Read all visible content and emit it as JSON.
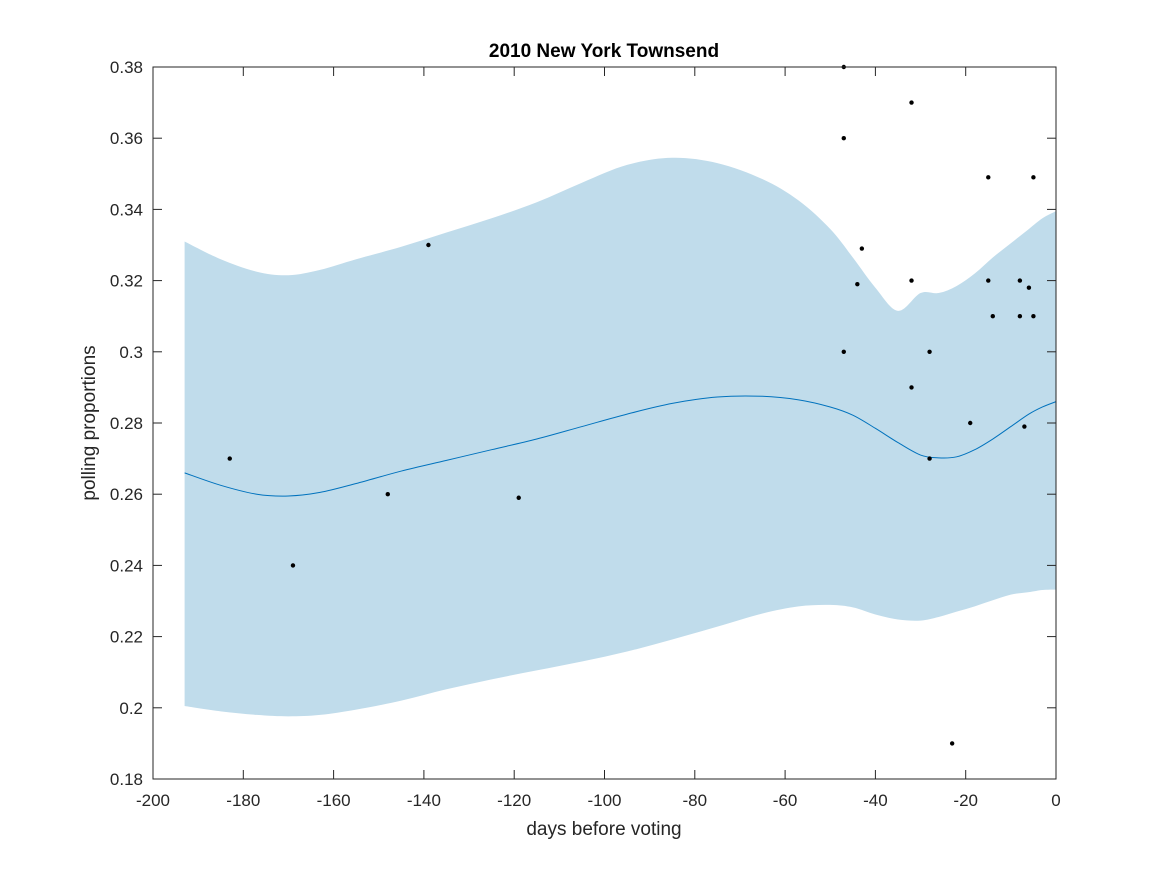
{
  "chart_data": {
    "type": "scatter",
    "title": "2010 New York Townsend",
    "xlabel": "days before voting",
    "ylabel": "polling proportions",
    "xlim": [
      -200,
      0
    ],
    "ylim": [
      0.18,
      0.38
    ],
    "xticks": [
      "-200",
      "-180",
      "-160",
      "-140",
      "-120",
      "-100",
      "-80",
      "-60",
      "-40",
      "-20",
      "0"
    ],
    "yticks": [
      "0.18",
      "0.2",
      "0.22",
      "0.24",
      "0.26",
      "0.28",
      "0.3",
      "0.32",
      "0.34",
      "0.36",
      "0.38"
    ],
    "grid": false,
    "colors": {
      "band": "#c0dceb",
      "line": "#0072bd",
      "points": "#000000",
      "axes": "#262626"
    },
    "points": [
      {
        "x": -183,
        "y": 0.27
      },
      {
        "x": -169,
        "y": 0.24
      },
      {
        "x": -148,
        "y": 0.26
      },
      {
        "x": -139,
        "y": 0.33
      },
      {
        "x": -119,
        "y": 0.259
      },
      {
        "x": -47,
        "y": 0.38
      },
      {
        "x": -47,
        "y": 0.36
      },
      {
        "x": -47,
        "y": 0.3
      },
      {
        "x": -44,
        "y": 0.319
      },
      {
        "x": -43,
        "y": 0.329
      },
      {
        "x": -32,
        "y": 0.37
      },
      {
        "x": -32,
        "y": 0.32
      },
      {
        "x": -32,
        "y": 0.29
      },
      {
        "x": -28,
        "y": 0.3
      },
      {
        "x": -28,
        "y": 0.27
      },
      {
        "x": -23,
        "y": 0.19
      },
      {
        "x": -19,
        "y": 0.28
      },
      {
        "x": -15,
        "y": 0.349
      },
      {
        "x": -15,
        "y": 0.32
      },
      {
        "x": -14,
        "y": 0.31
      },
      {
        "x": -8,
        "y": 0.32
      },
      {
        "x": -8,
        "y": 0.31
      },
      {
        "x": -7,
        "y": 0.279
      },
      {
        "x": -6,
        "y": 0.318
      },
      {
        "x": -5,
        "y": 0.349
      },
      {
        "x": -5,
        "y": 0.31
      }
    ],
    "mean_curve": {
      "x": [
        -193,
        -185,
        -177,
        -170,
        -163,
        -155,
        -145,
        -135,
        -125,
        -115,
        -105,
        -95,
        -85,
        -75,
        -65,
        -57,
        -50,
        -45,
        -40,
        -35,
        -30,
        -26,
        -22,
        -18,
        -14,
        -10,
        -6,
        -3,
        0
      ],
      "y": [
        0.266,
        0.2625,
        0.26,
        0.2595,
        0.2605,
        0.263,
        0.2665,
        0.2695,
        0.2725,
        0.2755,
        0.279,
        0.2825,
        0.2855,
        0.2873,
        0.2875,
        0.2865,
        0.2845,
        0.2822,
        0.2785,
        0.2745,
        0.271,
        0.2702,
        0.2705,
        0.2725,
        0.2755,
        0.279,
        0.2825,
        0.2845,
        0.286
      ]
    },
    "band": {
      "x": [
        -193,
        -185,
        -177,
        -170,
        -163,
        -155,
        -145,
        -135,
        -125,
        -115,
        -105,
        -95,
        -85,
        -75,
        -65,
        -57,
        -50,
        -45,
        -40,
        -35,
        -30,
        -26,
        -22,
        -18,
        -14,
        -10,
        -6,
        -3,
        0
      ],
      "upper": [
        0.331,
        0.326,
        0.3225,
        0.3215,
        0.323,
        0.326,
        0.3295,
        0.3335,
        0.3375,
        0.342,
        0.3475,
        0.3525,
        0.3545,
        0.353,
        0.3485,
        0.3425,
        0.3345,
        0.3265,
        0.318,
        0.3115,
        0.3165,
        0.3165,
        0.3185,
        0.322,
        0.3265,
        0.3305,
        0.3345,
        0.3375,
        0.3395
      ],
      "lower": [
        0.2005,
        0.199,
        0.198,
        0.1976,
        0.198,
        0.1995,
        0.202,
        0.2052,
        0.208,
        0.2105,
        0.213,
        0.2158,
        0.2192,
        0.2228,
        0.2265,
        0.2285,
        0.2289,
        0.2282,
        0.2262,
        0.2248,
        0.2245,
        0.2255,
        0.227,
        0.2285,
        0.2302,
        0.2318,
        0.2325,
        0.2331,
        0.2332
      ]
    }
  }
}
